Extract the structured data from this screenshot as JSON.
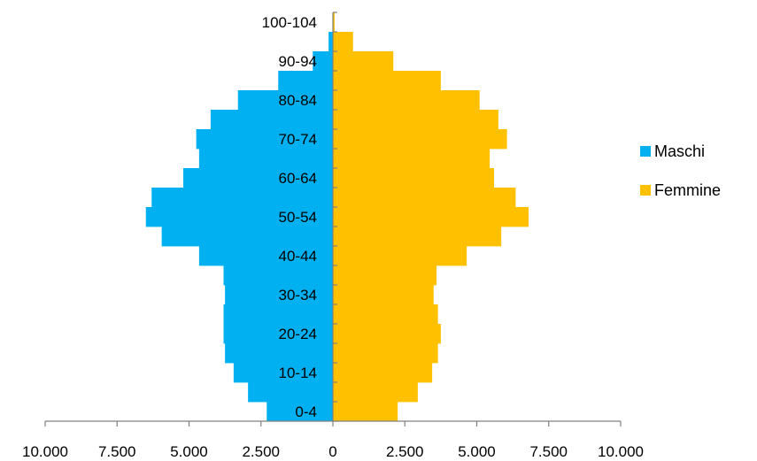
{
  "chart_data": {
    "type": "bar",
    "orientation": "horizontal",
    "layout": "population-pyramid",
    "categories": [
      "0-4",
      "5-9",
      "10-14",
      "15-19",
      "20-24",
      "25-29",
      "30-34",
      "35-39",
      "40-44",
      "45-49",
      "50-54",
      "55-59",
      "60-64",
      "65-69",
      "70-74",
      "75-79",
      "80-84",
      "85-89",
      "90-94",
      "95-99",
      "100-104"
    ],
    "category_labels_shown": [
      "0-4",
      "10-14",
      "20-24",
      "30-34",
      "40-44",
      "50-54",
      "60-64",
      "70-74",
      "80-84",
      "90-94",
      "100-104"
    ],
    "series": [
      {
        "name": "Maschi",
        "color": "#00B0F0",
        "side": "left",
        "values": [
          2300,
          2950,
          3450,
          3750,
          3800,
          3800,
          3750,
          3800,
          4650,
          5950,
          6500,
          6300,
          5200,
          4650,
          4750,
          4250,
          3300,
          1900,
          700,
          150,
          10
        ]
      },
      {
        "name": "Femmine",
        "color": "#FFC000",
        "side": "right",
        "values": [
          2250,
          2950,
          3450,
          3650,
          3750,
          3650,
          3500,
          3600,
          4650,
          5850,
          6800,
          6350,
          5600,
          5450,
          6050,
          5750,
          5100,
          3750,
          2100,
          700,
          60
        ]
      }
    ],
    "x_ticks": [
      "10.000",
      "7.500",
      "5.000",
      "2.500",
      "0",
      "2.500",
      "5.000",
      "7.500",
      "10.000"
    ],
    "x_tick_values": [
      -10000,
      -7500,
      -5000,
      -2500,
      0,
      2500,
      5000,
      7500,
      10000
    ],
    "xlim": [
      -10000,
      10000
    ],
    "title": "",
    "xlabel": "",
    "ylabel": "",
    "grid": false,
    "legend_position": "right"
  }
}
